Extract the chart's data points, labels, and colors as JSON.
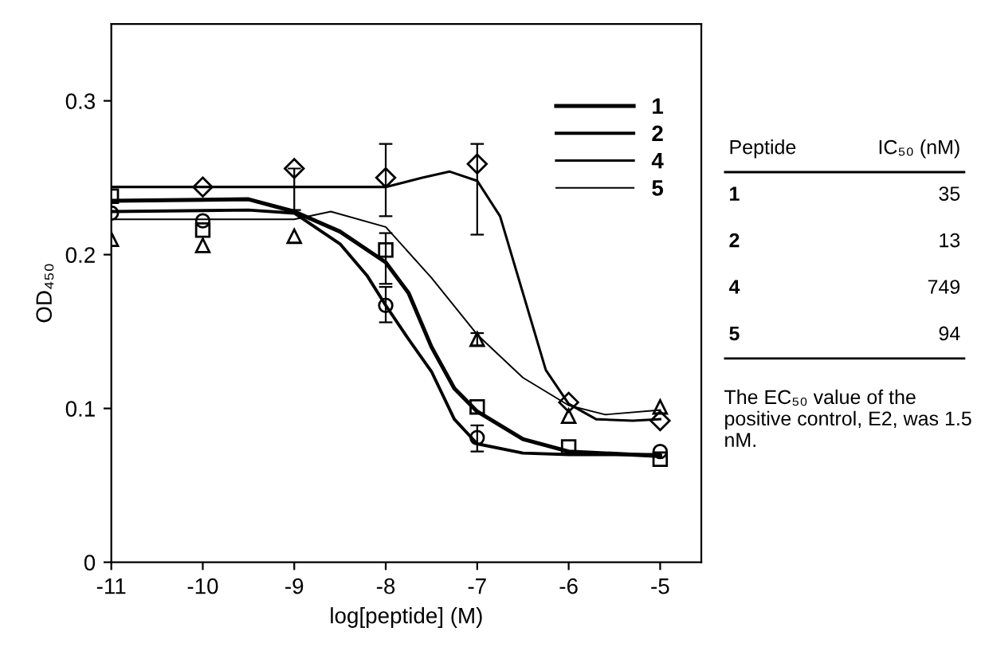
{
  "chart_data": [
    {
      "type": "scatter",
      "xlabel": "log[peptide] (M)",
      "ylabel": "OD₄₅₀",
      "xlim": [
        -11,
        -4.55
      ],
      "xticks": [
        -11,
        -10,
        -9,
        -8,
        -7,
        -6,
        -5
      ],
      "ylim": [
        0,
        0.35
      ],
      "yticks": [
        0,
        0.1,
        0.2,
        0.3
      ],
      "grid": false,
      "legend": "top right",
      "series": [
        {
          "type": "scatter",
          "marker": "square",
          "color": "#000000",
          "x": [
            -11,
            -10,
            -9,
            -8,
            -7,
            -6,
            -5
          ],
          "values": [
            0.238,
            0.216,
            null,
            0.203,
            0.101,
            0.075,
            0.067
          ],
          "errors": [
            null,
            null,
            null,
            [
              0.181,
              0.214
            ],
            null,
            null,
            null
          ]
        },
        {
          "type": "scatter",
          "marker": "circle",
          "color": "#000000",
          "x": [
            -11,
            -10,
            -9,
            -8,
            -7,
            -6,
            -5
          ],
          "values": [
            0.227,
            0.222,
            null,
            0.167,
            0.081,
            null,
            0.072
          ],
          "errors": [
            null,
            null,
            null,
            [
              0.156,
              0.179
            ],
            [
              0.072,
              0.089
            ],
            null,
            null
          ]
        },
        {
          "type": "scatter",
          "marker": "diamond",
          "color": "#000000",
          "x": [
            -10,
            -9,
            -8,
            -7,
            -6,
            -5
          ],
          "values": [
            0.244,
            0.256,
            0.25,
            0.259,
            0.104,
            0.092
          ],
          "errors": [
            null,
            [
              0.229,
              0.256
            ],
            [
              0.225,
              0.272
            ],
            [
              0.213,
              0.272
            ],
            null,
            null
          ]
        },
        {
          "type": "scatter",
          "marker": "triangle",
          "color": "#000000",
          "x": [
            -11,
            -10,
            -9,
            -8,
            -7,
            -6,
            -5
          ],
          "values": [
            0.21,
            0.206,
            0.212,
            null,
            0.145,
            0.095,
            0.101
          ],
          "errors": [
            null,
            null,
            null,
            null,
            [
              0.141,
              0.149
            ],
            null,
            null
          ]
        },
        {
          "type": "line",
          "name": "1",
          "color": "#000000",
          "x": [
            -11,
            -9.5,
            -9,
            -8.5,
            -8,
            -7.75,
            -7.5,
            -7.25,
            -7,
            -6.5,
            -6,
            -5
          ],
          "values": [
            0.235,
            0.236,
            0.228,
            0.215,
            0.195,
            0.175,
            0.14,
            0.113,
            0.098,
            0.08,
            0.072,
            0.069
          ]
        },
        {
          "type": "line",
          "name": "2",
          "color": "#000000",
          "x": [
            -11,
            -9.5,
            -9,
            -8.5,
            -8.2,
            -8,
            -7.75,
            -7.5,
            -7.25,
            -7,
            -6.5,
            -6,
            -5
          ],
          "values": [
            0.228,
            0.229,
            0.227,
            0.207,
            0.186,
            0.167,
            0.145,
            0.124,
            0.093,
            0.077,
            0.071,
            0.07,
            0.07
          ]
        },
        {
          "type": "line",
          "name": "4",
          "color": "#000000",
          "x": [
            -11,
            -8,
            -7.6,
            -7.3,
            -7,
            -6.75,
            -6.5,
            -6.25,
            -6,
            -5.7,
            -5.3,
            -5
          ],
          "values": [
            0.244,
            0.244,
            0.25,
            0.254,
            0.248,
            0.225,
            0.175,
            0.125,
            0.103,
            0.093,
            0.092,
            0.093
          ]
        },
        {
          "type": "line",
          "name": "5",
          "color": "#000000",
          "x": [
            -11,
            -9,
            -8.6,
            -8,
            -7.5,
            -7,
            -6.5,
            -6,
            -5.6,
            -5
          ],
          "values": [
            0.223,
            0.223,
            0.228,
            0.218,
            0.185,
            0.148,
            0.12,
            0.102,
            0.096,
            0.099
          ]
        }
      ]
    },
    {
      "type": "other",
      "annotations": [
        "Peptide",
        "IC₅₀ (nM)",
        "1",
        "35",
        "2",
        "13",
        "4",
        "749",
        "5",
        "94",
        "The EC₅₀ value of the positive control, E2, was 1.5 nM."
      ]
    }
  ]
}
